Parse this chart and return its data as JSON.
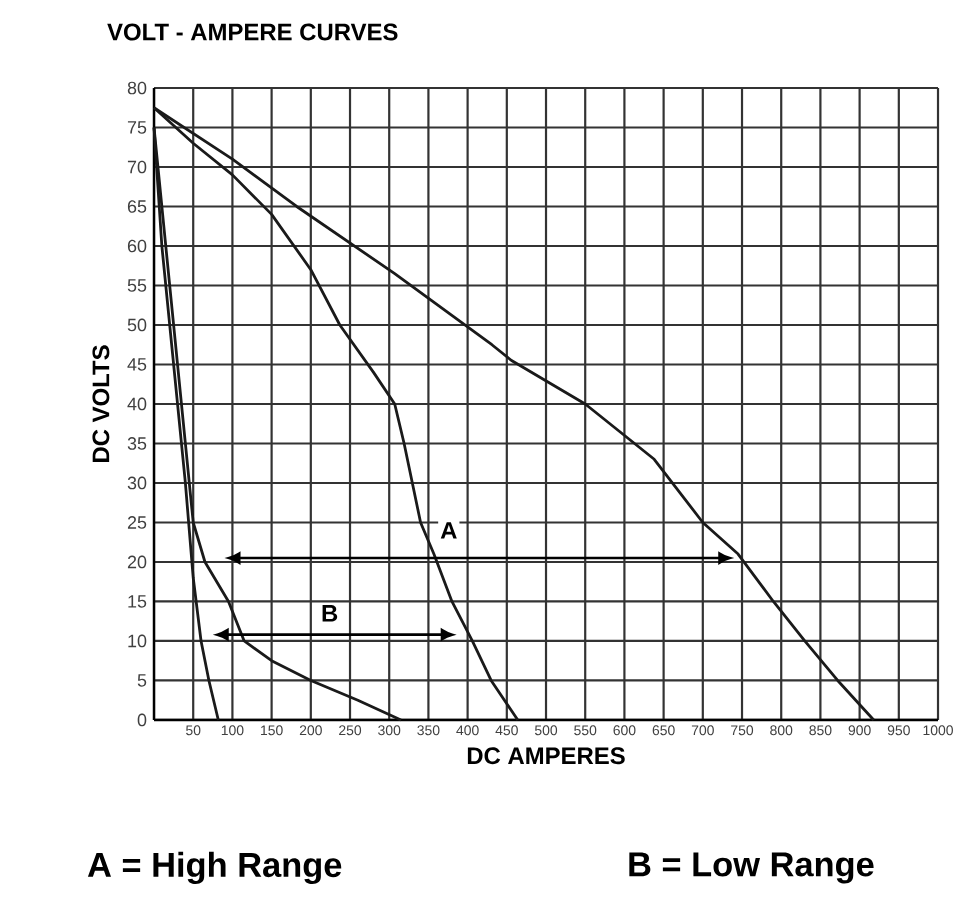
{
  "chart_data": {
    "type": "line",
    "title": "VOLT - AMPERE CURVES",
    "xlabel": "DC AMPERES",
    "ylabel": "DC VOLTS",
    "xlim": [
      0,
      1000
    ],
    "ylim": [
      0,
      80
    ],
    "xticks": [
      {
        "value": 0,
        "label": null
      },
      50,
      100,
      150,
      200,
      250,
      300,
      350,
      400,
      450,
      500,
      550,
      600,
      650,
      700,
      750,
      800,
      850,
      900,
      950,
      1000
    ],
    "yticks": [
      0,
      5,
      10,
      15,
      20,
      25,
      30,
      35,
      40,
      45,
      50,
      55,
      60,
      65,
      70,
      75,
      80
    ],
    "grid": true,
    "series": [
      {
        "color": "#1a1a1a",
        "x": [
          0,
          10,
          25,
          40,
          50,
          60,
          70,
          82
        ],
        "values": [
          75,
          60,
          45,
          30,
          18,
          10,
          5,
          0
        ]
      },
      {
        "color": "#1a1a1a",
        "x": [
          0,
          20,
          40,
          50,
          65,
          95,
          115,
          150,
          200,
          260,
          315
        ],
        "values": [
          75,
          55,
          35,
          25,
          20,
          15,
          10,
          7.5,
          5,
          2.5,
          0
        ]
      },
      {
        "color": "#1a1a1a",
        "x": [
          0,
          50,
          100,
          150,
          200,
          237,
          280,
          307,
          319,
          340,
          357,
          380,
          406,
          430,
          464
        ],
        "values": [
          77.5,
          73,
          69,
          64,
          57,
          50,
          44,
          40,
          35,
          25,
          21,
          15,
          10,
          5,
          0
        ]
      },
      {
        "color": "#1a1a1a",
        "x": [
          0,
          100,
          182,
          307,
          431,
          456,
          550,
          638,
          700,
          745,
          790,
          830,
          872,
          918
        ],
        "values": [
          77.5,
          71,
          65,
          56.5,
          47.5,
          45.5,
          40,
          33,
          25,
          21,
          15,
          10,
          5,
          0
        ]
      }
    ],
    "annotations": [
      {
        "text": "A",
        "x": 376,
        "y": 24
      },
      {
        "text": "B",
        "x": 224,
        "y": 13.5
      },
      "A = High Range",
      "B = Low Range"
    ]
  }
}
